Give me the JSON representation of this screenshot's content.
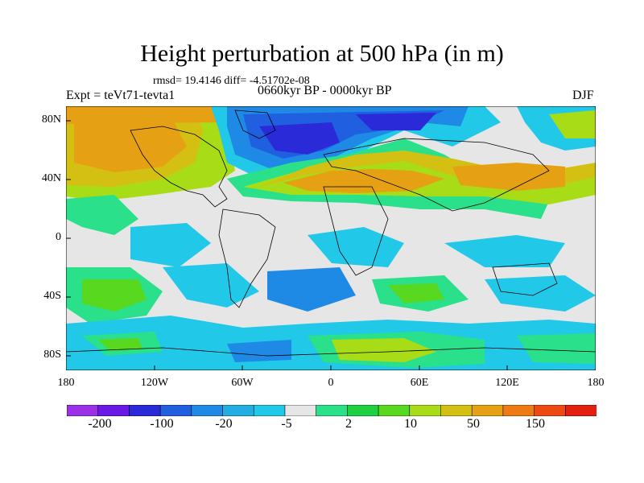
{
  "header": {
    "title": "Height perturbation at 500 hPa (in m)",
    "stats": "rmsd= 19.4146 diff= -4.51702e-08",
    "experiment": "Expt = teVt71-tevta1",
    "period": "0660kyr BP - 0000kyr BP",
    "season": "DJF"
  },
  "map": {
    "lat_labels": [
      "80N",
      "40N",
      "0",
      "40S",
      "80S"
    ],
    "lon_labels": [
      "180",
      "120W",
      "60W",
      "0",
      "60E",
      "120E",
      "180"
    ]
  },
  "colorbar": {
    "labels": [
      "-200",
      "-100",
      "-20",
      "-5",
      "2",
      "10",
      "50",
      "150"
    ],
    "colors": [
      "#9b30e8",
      "#6a18e6",
      "#2b2ad8",
      "#1f5fe0",
      "#1e8ae6",
      "#22aee2",
      "#22c8e8",
      "#e6e6e6",
      "#2ae08a",
      "#1fd040",
      "#58d81e",
      "#a8dc16",
      "#d4c012",
      "#e6a014",
      "#ee7a14",
      "#ec4a12",
      "#e41e10"
    ]
  }
}
